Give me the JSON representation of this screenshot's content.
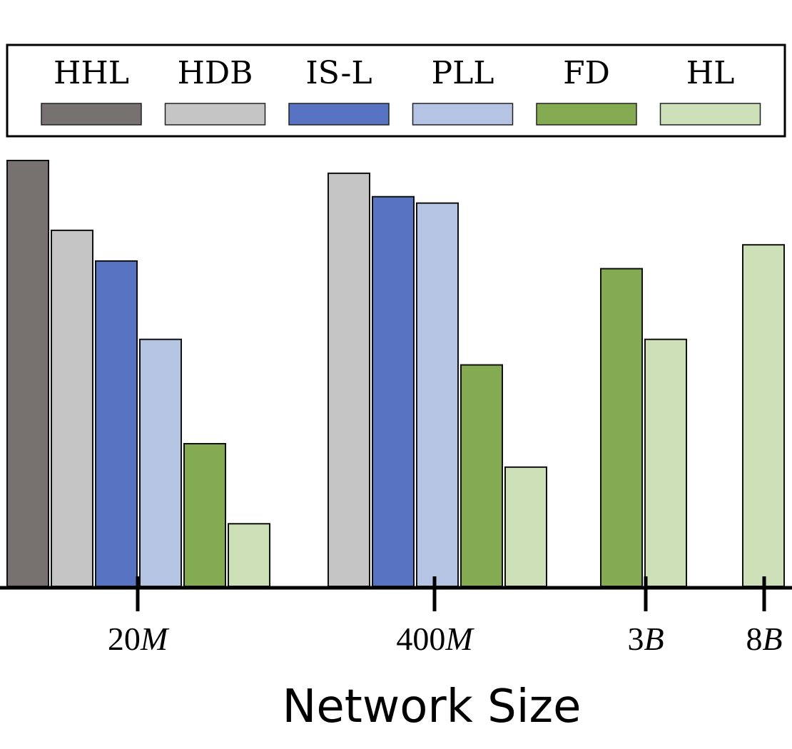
{
  "chart_data": {
    "type": "bar",
    "xlabel": "Network Size",
    "ylabel": "",
    "title": "",
    "grid": false,
    "legend_position": "top",
    "ylim": [
      0,
      100
    ],
    "categories": [
      {
        "number": "20",
        "unit": "M"
      },
      {
        "number": "400",
        "unit": "M"
      },
      {
        "number": "3",
        "unit": "B"
      },
      {
        "number": "8",
        "unit": "B"
      }
    ],
    "series": [
      {
        "name": "HHL",
        "color": "#777170",
        "values": [
          100,
          null,
          null,
          null
        ]
      },
      {
        "name": "HDB",
        "color": "#c5c5c5",
        "values": [
          83.6,
          97,
          null,
          null
        ]
      },
      {
        "name": "IS-L",
        "color": "#5873c2",
        "values": [
          76.4,
          91.5,
          null,
          null
        ]
      },
      {
        "name": "PLL",
        "color": "#b6c4e4",
        "values": [
          58,
          90,
          null,
          null
        ]
      },
      {
        "name": "FD",
        "color": "#84ab51",
        "values": [
          33.5,
          52,
          74.6,
          null
        ]
      },
      {
        "name": "HL",
        "color": "#cde0b7",
        "values": [
          14.7,
          28,
          58,
          80.2
        ]
      }
    ]
  }
}
